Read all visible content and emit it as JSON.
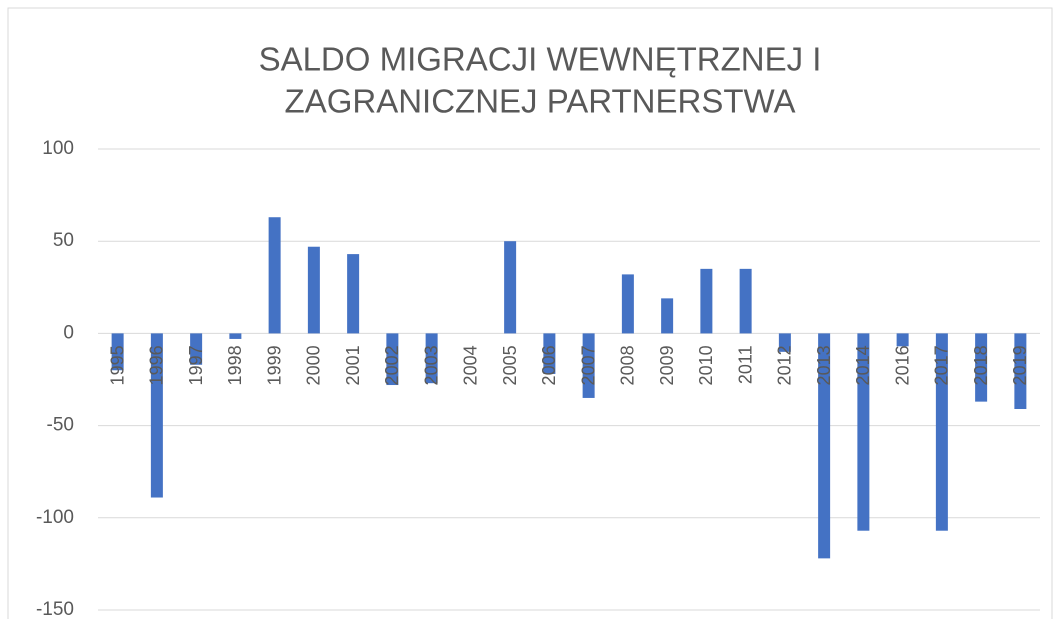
{
  "chart_data": {
    "type": "bar",
    "title": [
      "SALDO MIGRACJI WEWNĘTRZNEJ I",
      "ZAGRANICZNEJ PARTNERSTWA"
    ],
    "categories": [
      "1995",
      "1996",
      "1997",
      "1998",
      "1999",
      "2000",
      "2001",
      "2002",
      "2003",
      "2004",
      "2005",
      "2006",
      "2007",
      "2008",
      "2009",
      "2010",
      "2011",
      "2012",
      "2013",
      "2014",
      "2016",
      "2017",
      "2018",
      "2019"
    ],
    "values": [
      -20,
      -89,
      -17,
      -3,
      63,
      47,
      43,
      -28,
      -27,
      0,
      50,
      -22,
      -35,
      32,
      19,
      35,
      35,
      -10,
      -122,
      -107,
      -7,
      -107,
      -37,
      -41
    ],
    "color": "#4472c4",
    "ylim": [
      -150,
      100
    ],
    "yticks": [
      -150,
      -100,
      -50,
      0,
      50,
      100
    ],
    "grid": true
  }
}
